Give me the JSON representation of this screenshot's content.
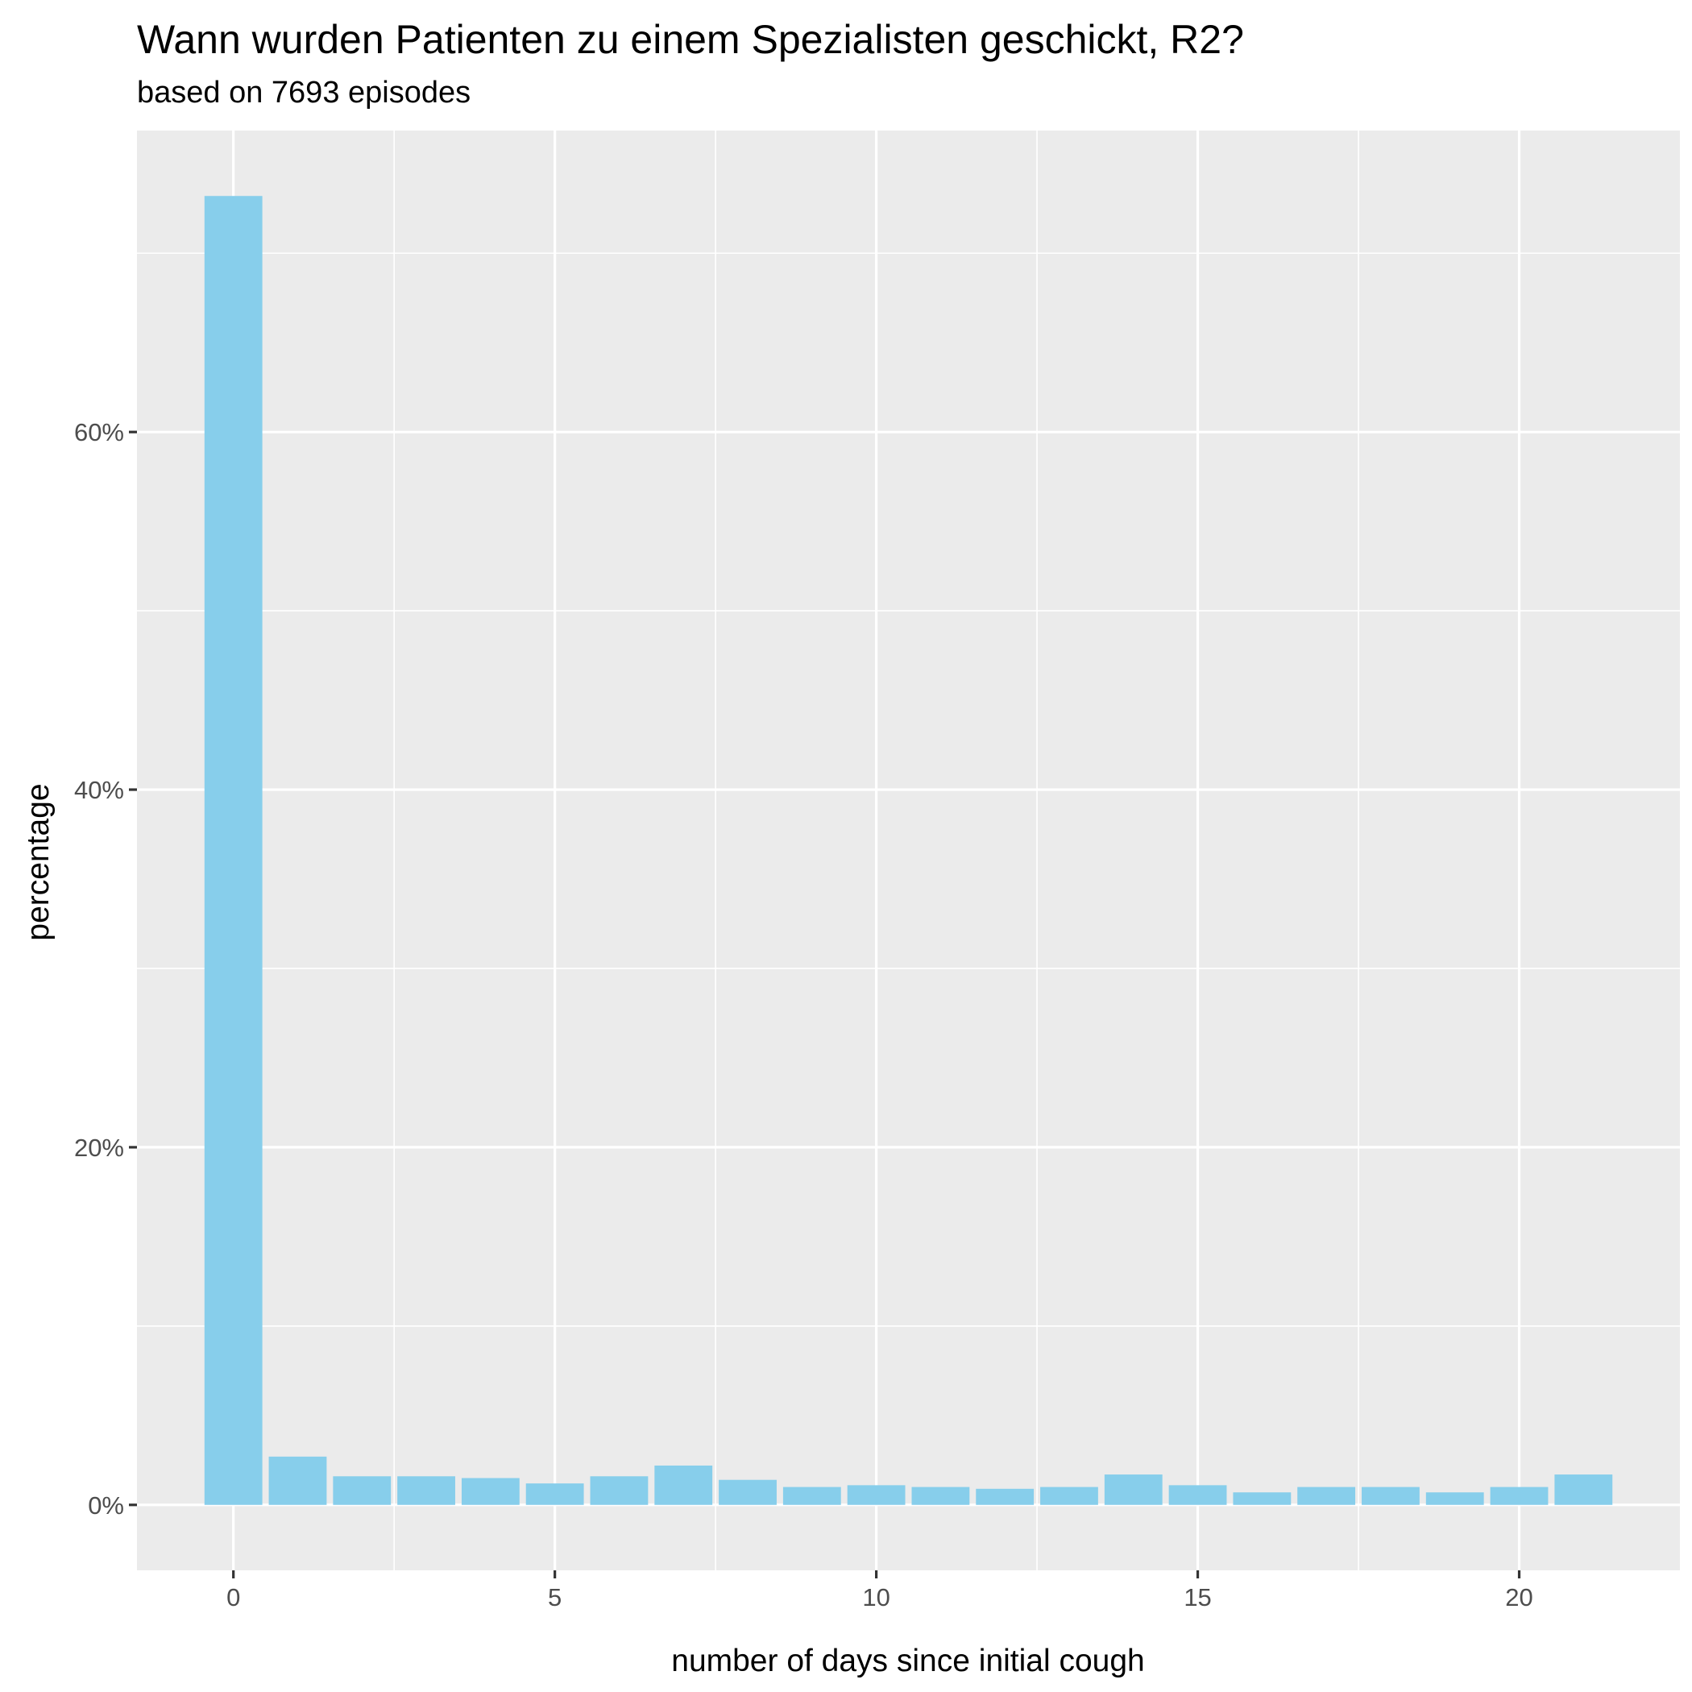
{
  "chart_data": {
    "type": "bar",
    "title": "Wann wurden Patienten zu einem Spezialisten geschickt, R2?",
    "subtitle": "based on 7693 episodes",
    "xlabel": "number of days since initial cough",
    "ylabel": "percentage",
    "x": [
      0,
      1,
      2,
      3,
      4,
      5,
      6,
      7,
      8,
      9,
      10,
      11,
      12,
      13,
      14,
      15,
      16,
      17,
      18,
      19,
      20,
      21
    ],
    "values": [
      73.2,
      2.7,
      1.6,
      1.6,
      1.5,
      1.2,
      1.6,
      2.2,
      1.4,
      1.0,
      1.1,
      1.0,
      0.9,
      1.0,
      1.7,
      1.1,
      0.7,
      1.0,
      1.0,
      0.7,
      1.0,
      1.7
    ],
    "xlim": [
      -1.5,
      22.5
    ],
    "ylim": [
      -3.66,
      76.86
    ],
    "x_ticks": [
      0,
      5,
      10,
      15,
      20
    ],
    "x_tick_labels": [
      "0",
      "5",
      "10",
      "15",
      "20"
    ],
    "y_ticks": [
      0,
      20,
      40,
      60
    ],
    "y_tick_labels": [
      "0%",
      "20%",
      "40%",
      "60%"
    ],
    "grid": true,
    "legend": "none",
    "colors": {
      "bar": "#87CEEB",
      "panel": "#EBEBEB",
      "grid": "#FFFFFF"
    }
  }
}
